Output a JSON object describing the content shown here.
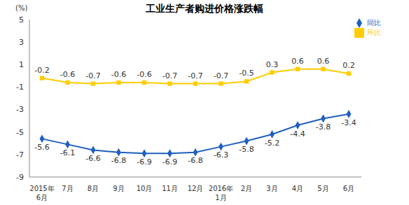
{
  "chart_data": {
    "type": "line",
    "title": "工业生产者购进价格涨跌幅",
    "y_label": "(%)",
    "categories": [
      "2015年6月",
      "7月",
      "8月",
      "9月",
      "10月",
      "11月",
      "12月",
      "2016年1月",
      "2月",
      "3月",
      "4月",
      "5月",
      "6月"
    ],
    "series": [
      {
        "name": "同比",
        "color": "#1f5fbf",
        "marker": "diamond",
        "values": [
          -5.6,
          -6.1,
          -6.6,
          -6.8,
          -6.9,
          -6.9,
          -6.8,
          -6.3,
          -5.8,
          -5.2,
          -4.4,
          -3.8,
          -3.4
        ]
      },
      {
        "name": "环比",
        "color": "#ffcc00",
        "marker": "square",
        "values": [
          -0.2,
          -0.6,
          -0.7,
          -0.6,
          -0.6,
          -0.7,
          -0.7,
          -0.7,
          -0.5,
          0.3,
          0.6,
          0.6,
          0.2
        ]
      }
    ],
    "ylim": [
      -9,
      5
    ],
    "yticks": [
      -9,
      -7,
      -5,
      -3,
      -1,
      1,
      3,
      5
    ],
    "grid": false,
    "legend": "top-right",
    "data_labels": true
  }
}
